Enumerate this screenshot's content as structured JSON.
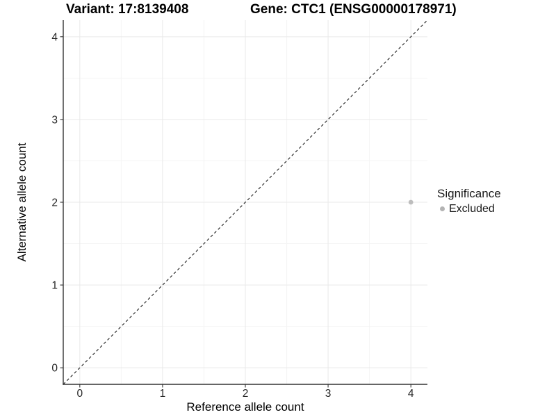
{
  "chart_data": {
    "type": "scatter",
    "title_left": "Variant: 17:8139408",
    "title_right": "Gene: CTC1 (ENSG00000178971)",
    "xlabel": "Reference allele count",
    "ylabel": "Alternative allele count",
    "xlim": [
      -0.2,
      4.2
    ],
    "ylim": [
      -0.2,
      4.2
    ],
    "x_ticks": [
      0,
      1,
      2,
      3,
      4
    ],
    "y_ticks": [
      0,
      1,
      2,
      3,
      4
    ],
    "x_minor_ticks": [
      0.5,
      1.5,
      2.5,
      3.5
    ],
    "y_minor_ticks": [
      0.5,
      1.5,
      2.5,
      3.5
    ],
    "grid": "major+minor",
    "reference_line": {
      "type": "identity",
      "slope": 1,
      "intercept": 0,
      "style": "dashed",
      "color": "#1a1a1a"
    },
    "series": [
      {
        "name": "Excluded",
        "color": "#bdbdbd",
        "points": [
          {
            "x": 4,
            "y": 2
          }
        ]
      }
    ],
    "legend": {
      "title": "Significance",
      "position": "right",
      "items": [
        {
          "label": "Excluded",
          "color": "#b3b3b3"
        }
      ]
    }
  },
  "style": {
    "panel_background": "#ffffff",
    "grid_major_color": "#e9e9e9",
    "grid_minor_color": "#f4f4f4",
    "axis_line_color": "#333333",
    "tick_color": "#333333",
    "tick_label_color": "#262626",
    "point_radius": 3.4
  }
}
